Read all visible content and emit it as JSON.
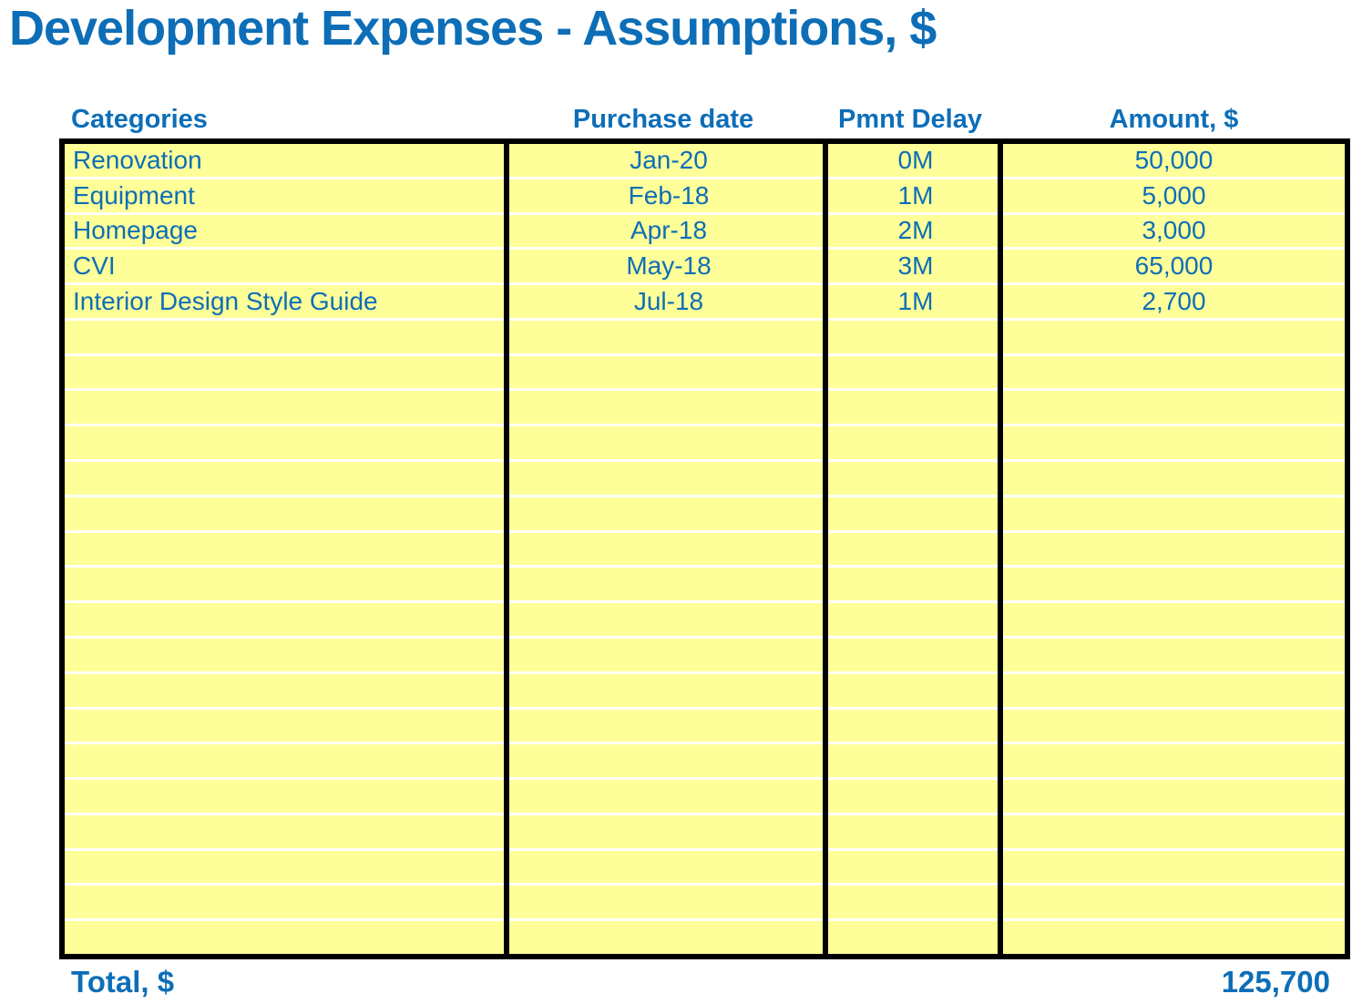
{
  "page": {
    "title": "Development Expenses - Assumptions, $"
  },
  "table": {
    "columns": [
      {
        "id": "category",
        "label": "Categories"
      },
      {
        "id": "purchase_date",
        "label": "Purchase date"
      },
      {
        "id": "pmnt_delay",
        "label": "Pmnt Delay"
      },
      {
        "id": "amount",
        "label": "Amount, $"
      }
    ],
    "rows": [
      {
        "category": "Renovation",
        "purchase_date": "Jan-20",
        "pmnt_delay": "0M",
        "amount": "50,000"
      },
      {
        "category": "Equipment",
        "purchase_date": "Feb-18",
        "pmnt_delay": "1M",
        "amount": "5,000"
      },
      {
        "category": "Homepage",
        "purchase_date": "Apr-18",
        "pmnt_delay": "2M",
        "amount": "3,000"
      },
      {
        "category": "CVI",
        "purchase_date": "May-18",
        "pmnt_delay": "3M",
        "amount": "65,000"
      },
      {
        "category": "Interior Design Style Guide",
        "purchase_date": "Jul-18",
        "pmnt_delay": "1M",
        "amount": "2,700"
      }
    ],
    "empty_row_count": 18
  },
  "footer": {
    "total_label": "Total, $",
    "total_value": "125,700"
  },
  "colors": {
    "accent_blue": "#0D6EB7",
    "cell_yellow": "#FFFF99",
    "border_black": "#000000",
    "row_line_white": "#FFFFFF",
    "background": "#FFFFFF"
  }
}
